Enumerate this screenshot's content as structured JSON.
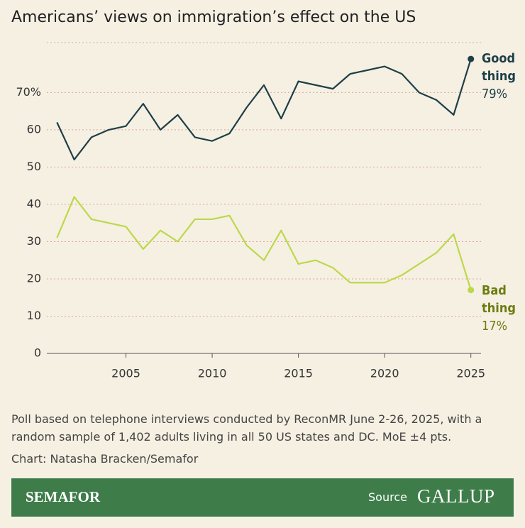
{
  "chart_data": {
    "type": "line",
    "title": "Americans’ views on immigration’s effect on the US",
    "x": [
      2001,
      2002,
      2003,
      2004,
      2005,
      2006,
      2007,
      2008,
      2009,
      2010,
      2011,
      2012,
      2013,
      2014,
      2015,
      2016,
      2017,
      2018,
      2019,
      2020,
      2021,
      2022,
      2023,
      2024,
      2025
    ],
    "series": [
      {
        "name": "Good thing",
        "color": "#1d3f47",
        "label_color": "#1d3f47",
        "end_label": "79%",
        "values": [
          62,
          52,
          58,
          60,
          61,
          67,
          60,
          64,
          58,
          57,
          59,
          66,
          72,
          63,
          73,
          72,
          71,
          75,
          76,
          77,
          75,
          70,
          68,
          64,
          79
        ]
      },
      {
        "name": "Bad thing",
        "color": "#bcd84a",
        "label_color": "#6b7d10",
        "end_label": "17%",
        "values": [
          31,
          42,
          36,
          35,
          34,
          28,
          33,
          30,
          36,
          36,
          37,
          29,
          25,
          33,
          24,
          25,
          23,
          19,
          19,
          19,
          21,
          24,
          27,
          32,
          17
        ]
      }
    ],
    "xlim": [
      2000,
      2026
    ],
    "xticks": [
      2005,
      2010,
      2015,
      2020,
      2025
    ],
    "ylim": [
      0,
      83.4
    ],
    "yticks": [
      0,
      10,
      20,
      30,
      40,
      50,
      60,
      {
        "value": 70,
        "label": "70%"
      }
    ],
    "grid": true
  },
  "notes": "Poll based on telephone interviews conducted by ReconMR June 2-26, 2025, with a random sample of 1,402 adults living in all 50 US states and DC. MoE ±4 pts.",
  "credit": "Chart: Natasha Bracken/Semafor",
  "footer": {
    "brand": "SEMAFOR",
    "source_label": "Source",
    "source": "GALLUP"
  }
}
